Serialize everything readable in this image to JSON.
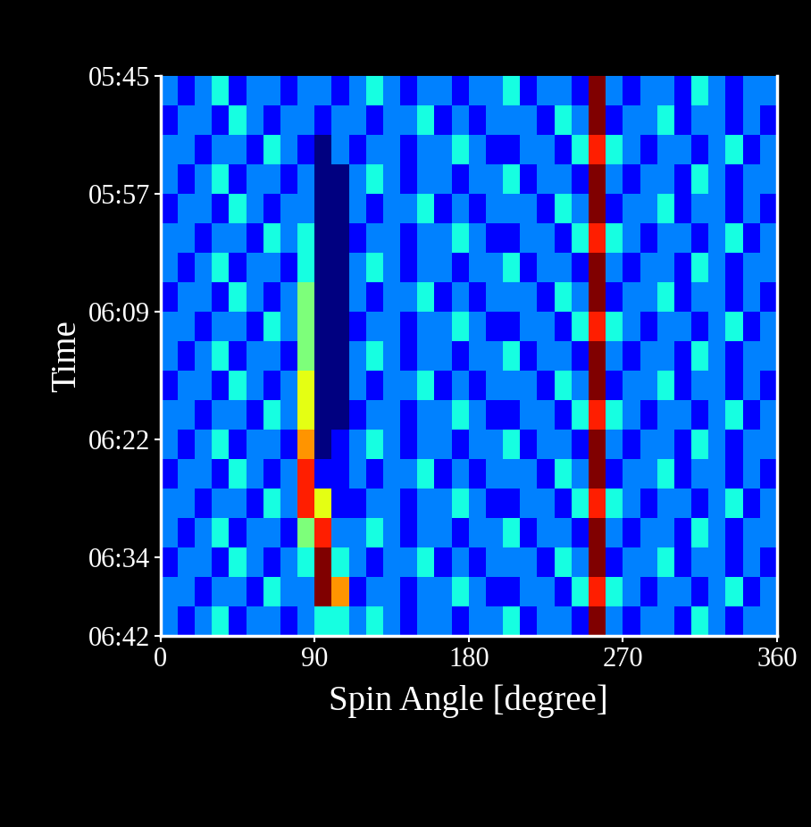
{
  "chart_data": {
    "type": "heatmap",
    "x_label": "Spin Angle [degree]",
    "y_label": "Time",
    "xlim": [
      0,
      360
    ],
    "xticks": [
      0,
      90,
      180,
      270,
      360
    ],
    "ylim": [
      402,
      345
    ],
    "yticks": [
      {
        "value": 345,
        "label": "05:45"
      },
      {
        "value": 357,
        "label": "05:57"
      },
      {
        "value": 369,
        "label": "06:09"
      },
      {
        "value": 382,
        "label": "06:22"
      },
      {
        "value": 394,
        "label": "06:34"
      },
      {
        "value": 402,
        "label": "06:42"
      }
    ],
    "x_edges": [
      0,
      10,
      20,
      30,
      40,
      50,
      60,
      70,
      80,
      90,
      100,
      110,
      120,
      130,
      140,
      150,
      160,
      170,
      180,
      190,
      200,
      210,
      220,
      230,
      240,
      250,
      260,
      270,
      280,
      290,
      300,
      310,
      320,
      330,
      340,
      350,
      360
    ],
    "y_edges": [
      345,
      348,
      351,
      354,
      357,
      360,
      363,
      366,
      369,
      372,
      375,
      378,
      381,
      384,
      387,
      390,
      393,
      396,
      399,
      402
    ],
    "cells": [
      [
        2,
        1,
        2,
        3,
        1,
        2,
        2,
        1,
        2,
        2,
        1,
        2,
        3,
        2,
        1,
        2,
        2,
        1,
        2,
        2,
        3,
        1,
        2,
        2,
        1,
        8,
        2,
        1,
        2,
        2,
        1,
        3,
        2,
        1,
        2,
        2
      ],
      [
        1,
        2,
        2,
        1,
        3,
        2,
        1,
        2,
        2,
        1,
        2,
        2,
        1,
        2,
        2,
        3,
        1,
        2,
        1,
        2,
        2,
        2,
        1,
        3,
        2,
        8,
        1,
        2,
        2,
        3,
        1,
        2,
        2,
        1,
        2,
        1
      ],
      [
        2,
        2,
        1,
        2,
        2,
        1,
        3,
        2,
        1,
        0,
        2,
        1,
        2,
        2,
        1,
        2,
        2,
        3,
        2,
        1,
        1,
        2,
        2,
        1,
        3,
        7,
        3,
        2,
        1,
        2,
        2,
        1,
        2,
        3,
        1,
        2
      ],
      [
        2,
        1,
        2,
        3,
        1,
        2,
        2,
        1,
        2,
        0,
        0,
        2,
        3,
        2,
        1,
        2,
        2,
        1,
        2,
        2,
        3,
        1,
        2,
        2,
        1,
        8,
        2,
        1,
        2,
        2,
        1,
        3,
        2,
        1,
        2,
        2
      ],
      [
        1,
        2,
        2,
        1,
        3,
        2,
        1,
        2,
        2,
        0,
        0,
        2,
        1,
        2,
        2,
        3,
        1,
        2,
        1,
        2,
        2,
        2,
        1,
        3,
        2,
        8,
        1,
        2,
        2,
        3,
        1,
        2,
        2,
        1,
        2,
        1
      ],
      [
        2,
        2,
        1,
        2,
        2,
        1,
        3,
        2,
        3,
        0,
        0,
        1,
        2,
        2,
        1,
        2,
        2,
        3,
        2,
        1,
        1,
        2,
        2,
        1,
        3,
        7,
        3,
        2,
        1,
        2,
        2,
        1,
        2,
        3,
        1,
        2
      ],
      [
        2,
        1,
        2,
        3,
        1,
        2,
        2,
        1,
        3,
        0,
        0,
        2,
        3,
        2,
        1,
        2,
        2,
        1,
        2,
        2,
        3,
        1,
        2,
        2,
        1,
        8,
        2,
        1,
        2,
        2,
        1,
        3,
        2,
        1,
        2,
        2
      ],
      [
        1,
        2,
        2,
        1,
        3,
        2,
        1,
        2,
        4,
        0,
        0,
        2,
        1,
        2,
        2,
        3,
        1,
        2,
        1,
        2,
        2,
        2,
        1,
        3,
        2,
        8,
        1,
        2,
        2,
        3,
        1,
        2,
        2,
        1,
        2,
        1
      ],
      [
        2,
        2,
        1,
        2,
        2,
        1,
        3,
        2,
        4,
        0,
        0,
        1,
        2,
        2,
        1,
        2,
        2,
        3,
        2,
        1,
        1,
        2,
        2,
        1,
        3,
        7,
        3,
        2,
        1,
        2,
        2,
        1,
        2,
        3,
        1,
        2
      ],
      [
        2,
        1,
        2,
        3,
        1,
        2,
        2,
        1,
        4,
        0,
        0,
        2,
        3,
        2,
        1,
        2,
        2,
        1,
        2,
        2,
        3,
        1,
        2,
        2,
        1,
        8,
        2,
        1,
        2,
        2,
        1,
        3,
        2,
        1,
        2,
        2
      ],
      [
        1,
        2,
        2,
        1,
        3,
        2,
        1,
        2,
        5,
        0,
        0,
        2,
        1,
        2,
        2,
        3,
        1,
        2,
        1,
        2,
        2,
        2,
        1,
        3,
        2,
        8,
        1,
        2,
        2,
        3,
        1,
        2,
        2,
        1,
        2,
        1
      ],
      [
        2,
        2,
        1,
        2,
        2,
        1,
        3,
        2,
        5,
        0,
        0,
        1,
        2,
        2,
        1,
        2,
        2,
        3,
        2,
        1,
        1,
        2,
        2,
        1,
        3,
        7,
        3,
        2,
        1,
        2,
        2,
        1,
        2,
        3,
        1,
        2
      ],
      [
        2,
        1,
        2,
        3,
        1,
        2,
        2,
        1,
        6,
        0,
        1,
        2,
        3,
        2,
        1,
        2,
        2,
        1,
        2,
        2,
        3,
        1,
        2,
        2,
        1,
        8,
        2,
        1,
        2,
        2,
        1,
        3,
        2,
        1,
        2,
        2
      ],
      [
        1,
        2,
        2,
        1,
        3,
        2,
        1,
        2,
        7,
        1,
        1,
        2,
        1,
        2,
        2,
        3,
        1,
        2,
        1,
        2,
        2,
        2,
        1,
        3,
        2,
        8,
        1,
        2,
        2,
        3,
        1,
        2,
        2,
        1,
        2,
        1
      ],
      [
        2,
        2,
        1,
        2,
        2,
        1,
        3,
        2,
        7,
        5,
        1,
        1,
        2,
        2,
        1,
        2,
        2,
        3,
        2,
        1,
        1,
        2,
        2,
        1,
        3,
        7,
        3,
        2,
        1,
        2,
        2,
        1,
        2,
        3,
        1,
        2
      ],
      [
        2,
        1,
        2,
        3,
        1,
        2,
        2,
        1,
        4,
        7,
        2,
        2,
        3,
        2,
        1,
        2,
        2,
        1,
        2,
        2,
        3,
        1,
        2,
        2,
        1,
        8,
        2,
        1,
        2,
        2,
        1,
        3,
        2,
        1,
        2,
        2
      ],
      [
        1,
        2,
        2,
        1,
        3,
        2,
        1,
        2,
        3,
        8,
        3,
        2,
        1,
        2,
        2,
        3,
        1,
        2,
        1,
        2,
        2,
        2,
        1,
        3,
        2,
        8,
        1,
        2,
        2,
        3,
        1,
        2,
        2,
        1,
        2,
        1
      ],
      [
        2,
        2,
        1,
        2,
        2,
        1,
        3,
        2,
        2,
        8,
        6,
        1,
        2,
        2,
        1,
        2,
        2,
        3,
        2,
        1,
        1,
        2,
        2,
        1,
        3,
        7,
        3,
        2,
        1,
        2,
        2,
        1,
        2,
        3,
        1,
        2
      ],
      [
        2,
        1,
        2,
        3,
        1,
        2,
        2,
        1,
        2,
        3,
        3,
        2,
        3,
        2,
        1,
        2,
        2,
        1,
        2,
        2,
        3,
        1,
        2,
        2,
        1,
        8,
        2,
        1,
        2,
        2,
        1,
        3,
        2,
        1,
        2,
        2
      ]
    ]
  }
}
